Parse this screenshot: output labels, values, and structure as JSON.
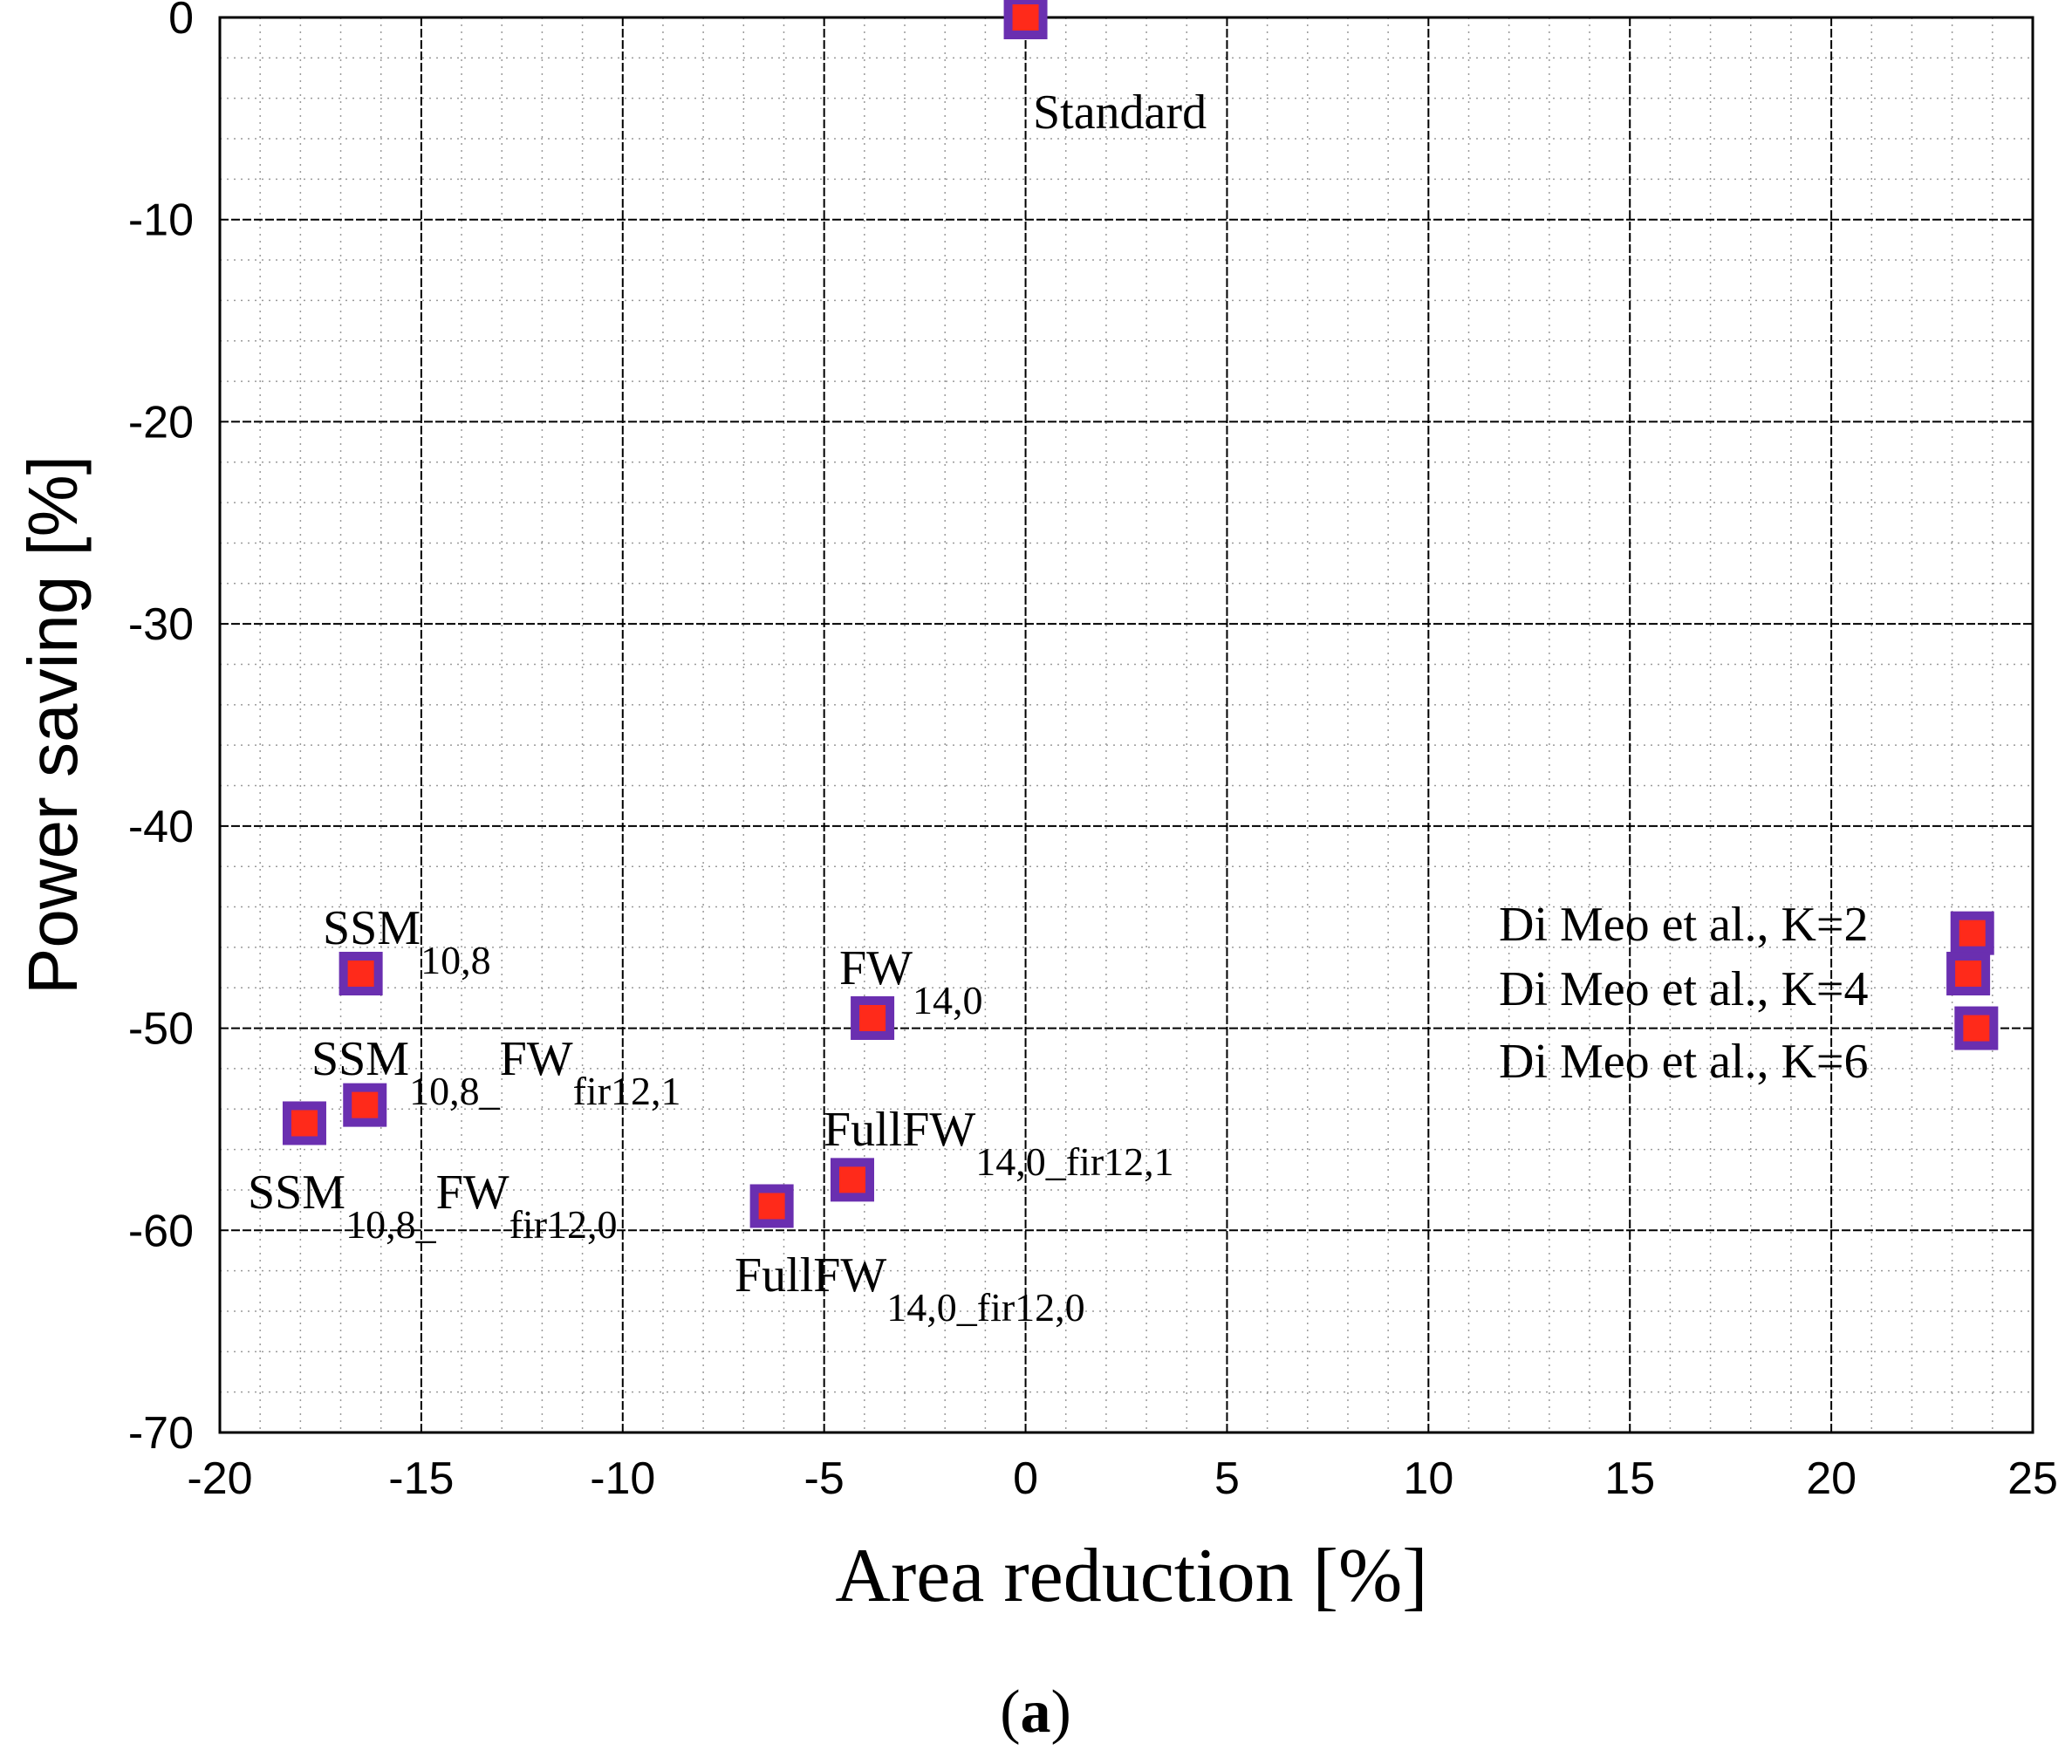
{
  "chart_data": {
    "type": "scatter",
    "xlabel": "Area reduction [%]",
    "ylabel": "Power saving [%]",
    "xlim": [
      -20,
      25
    ],
    "ylim": [
      -70,
      0
    ],
    "xticks": [
      -20,
      -15,
      -10,
      -5,
      0,
      5,
      10,
      15,
      20,
      25
    ],
    "yticks": [
      0,
      -10,
      -20,
      -30,
      -40,
      -50,
      -60,
      -70
    ],
    "xtick_labels": [
      "-20",
      "-15",
      "-10",
      "-5",
      "0",
      "5",
      "10",
      "15",
      "20",
      "25"
    ],
    "ytick_labels": [
      "0",
      "-10",
      "-20",
      "-30",
      "-40",
      "-50",
      "-60",
      "-70"
    ],
    "grid": true,
    "marker": {
      "fill": "#ff2a1a",
      "edge": "#6a2fb0"
    },
    "points": [
      {
        "name": "Standard",
        "x": 0,
        "y": 0,
        "label_main": "Standard",
        "label_sub": ""
      },
      {
        "name": "SSM_10,8",
        "x": -16.5,
        "y": -47.3,
        "label_main": "SSM",
        "label_sub": "10,8"
      },
      {
        "name": "FW_14,0",
        "x": -3.8,
        "y": -49.5,
        "label_main": "FW",
        "label_sub": "14,0"
      },
      {
        "name": "SSM_10,8_FW_fir12,1",
        "x": -16.4,
        "y": -53.8,
        "label_main": "SSM",
        "label_sub": "10,8_",
        "label_main2": "FW",
        "label_sub2": "fir12,1"
      },
      {
        "name": "SSM_10,8_FW_fir12,0",
        "x": -17.9,
        "y": -54.7,
        "label_main": "SSM",
        "label_sub": "10,8_",
        "label_main2": "FW",
        "label_sub2": "fir12,0"
      },
      {
        "name": "FullFW_14,0_fir12,1",
        "x": -4.3,
        "y": -57.5,
        "label_main": "FullFW",
        "label_sub": "14,0_fir12,1"
      },
      {
        "name": "FullFW_14,0_fir12,0",
        "x": -6.3,
        "y": -58.8,
        "label_main": "FullFW",
        "label_sub": "14,0_fir12,0"
      },
      {
        "name": "Di Meo et al., K=2",
        "x": 23.5,
        "y": -45.3,
        "label_main": "Di Meo et al., K=2",
        "label_sub": ""
      },
      {
        "name": "Di Meo et al., K=4",
        "x": 23.4,
        "y": -47.3,
        "label_main": "Di Meo et al., K=4",
        "label_sub": ""
      },
      {
        "name": "Di Meo et al., K=6",
        "x": 23.6,
        "y": -50.0,
        "label_main": "Di Meo et al., K=6",
        "label_sub": ""
      }
    ]
  },
  "caption": {
    "open": "(",
    "letter": "a",
    "close": ")"
  }
}
